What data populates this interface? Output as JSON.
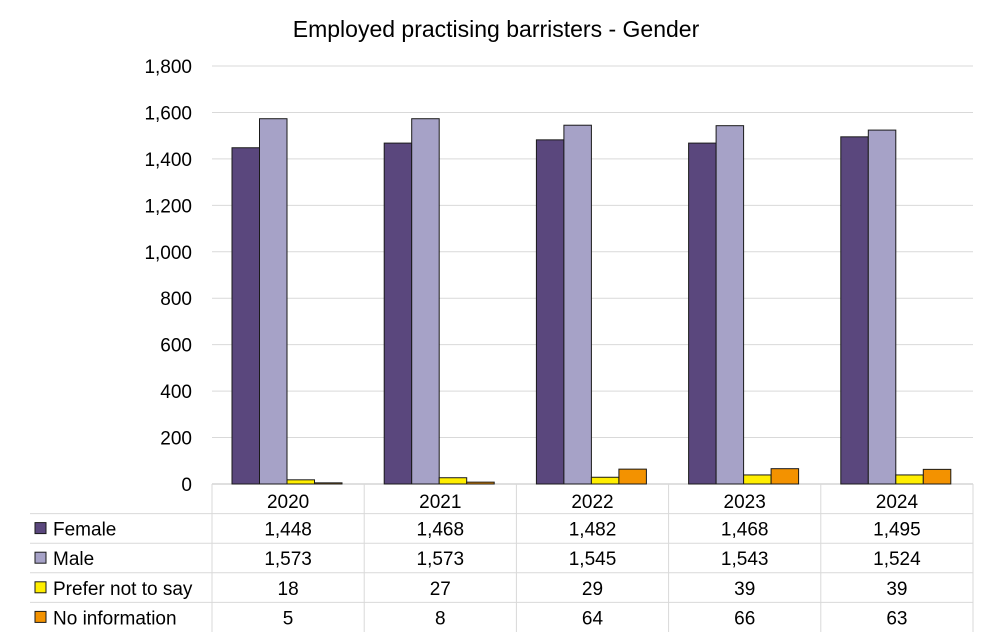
{
  "chart_data": {
    "type": "bar",
    "title": "Employed practising barristers - Gender",
    "xlabel": "",
    "ylabel": "",
    "categories": [
      "2020",
      "2021",
      "2022",
      "2023",
      "2024"
    ],
    "ylim": [
      0,
      1800
    ],
    "yticks": [
      0,
      200,
      400,
      600,
      800,
      1000,
      1200,
      1400,
      1600,
      1800
    ],
    "yticks_labels": [
      "0",
      "200",
      "400",
      "600",
      "800",
      "1,000",
      "1,200",
      "1,400",
      "1,600",
      "1,800"
    ],
    "grid": true,
    "legend_placement": "data-table-left",
    "series": [
      {
        "name": "Female",
        "color": "#5a477d",
        "values": [
          1448,
          1468,
          1482,
          1468,
          1495
        ],
        "labels": [
          "1,448",
          "1,468",
          "1,482",
          "1,468",
          "1,495"
        ]
      },
      {
        "name": "Male",
        "color": "#a6a2c7",
        "values": [
          1573,
          1573,
          1545,
          1543,
          1524
        ],
        "labels": [
          "1,573",
          "1,573",
          "1,545",
          "1,543",
          "1,524"
        ]
      },
      {
        "name": "Prefer not to say",
        "color": "#ffee00",
        "values": [
          18,
          27,
          29,
          39,
          39
        ],
        "labels": [
          "18",
          "27",
          "29",
          "39",
          "39"
        ]
      },
      {
        "name": "No information",
        "color": "#f39200",
        "values": [
          5,
          8,
          64,
          66,
          63
        ],
        "labels": [
          "5",
          "8",
          "64",
          "66",
          "63"
        ]
      }
    ]
  }
}
